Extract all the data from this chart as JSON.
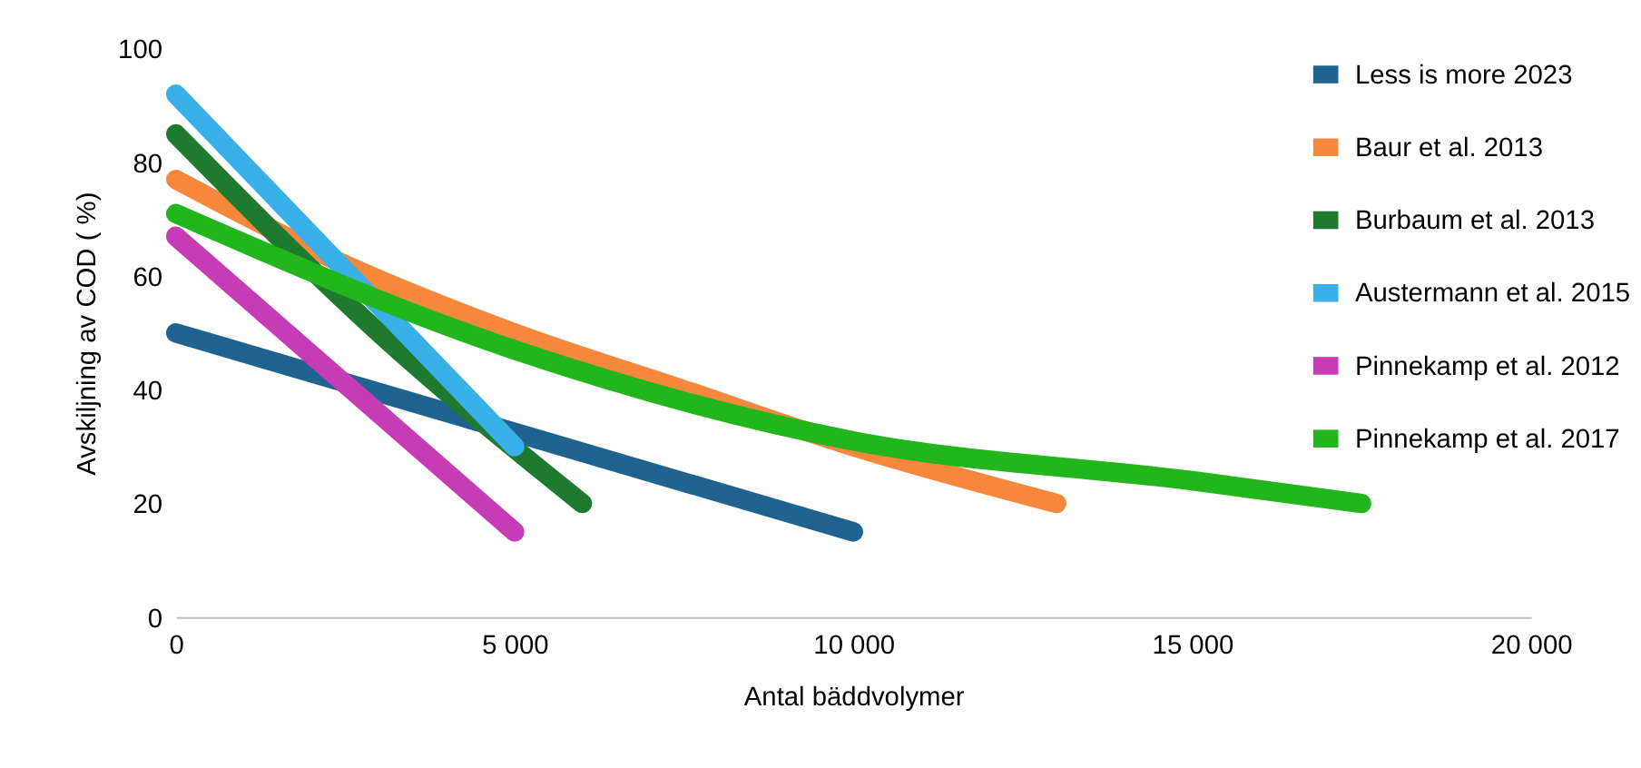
{
  "chart_data": {
    "type": "line",
    "xlabel": "Antal bäddvolymer",
    "ylabel": "Avskiljning av COD ( %)",
    "xlim": [
      0,
      20000
    ],
    "ylim": [
      0,
      100
    ],
    "xticks": [
      0,
      {
        "value": 5000,
        "label": "5 000"
      },
      {
        "value": 10000,
        "label": "10 000"
      },
      {
        "value": 15000,
        "label": "15 000"
      },
      {
        "value": 20000,
        "label": "20 000"
      }
    ],
    "yticks": [
      0,
      20,
      40,
      60,
      80,
      100
    ],
    "grid": false,
    "legend": "top right",
    "marker": "none",
    "line_style": "solid",
    "series": [
      {
        "name": "Less is more 2023",
        "color": "#1f6391",
        "x": [
          0,
          10000
        ],
        "values": [
          50,
          15
        ]
      },
      {
        "name": "Baur et al. 2013",
        "color": "#f5883c",
        "x": [
          0,
          2500,
          5000,
          7500,
          10000,
          13000
        ],
        "values": [
          77,
          62,
          50,
          40,
          30,
          20
        ]
      },
      {
        "name": "Burbaum et al. 2013",
        "color": "#1e7a2e",
        "x": [
          0,
          3000,
          6000
        ],
        "values": [
          85,
          50,
          20
        ]
      },
      {
        "name": "Austermann et al. 2015",
        "color": "#3ab0e8",
        "x": [
          0,
          5000
        ],
        "values": [
          92,
          30
        ]
      },
      {
        "name": "Pinnekamp et al. 2012",
        "color": "#c63cb4",
        "x": [
          0,
          5000
        ],
        "values": [
          67,
          15
        ]
      },
      {
        "name": "Pinnekamp et al. 2017",
        "color": "#22b51c",
        "x": [
          0,
          5000,
          10000,
          15000,
          17500
        ],
        "values": [
          71,
          47,
          31,
          24,
          20
        ]
      }
    ]
  }
}
